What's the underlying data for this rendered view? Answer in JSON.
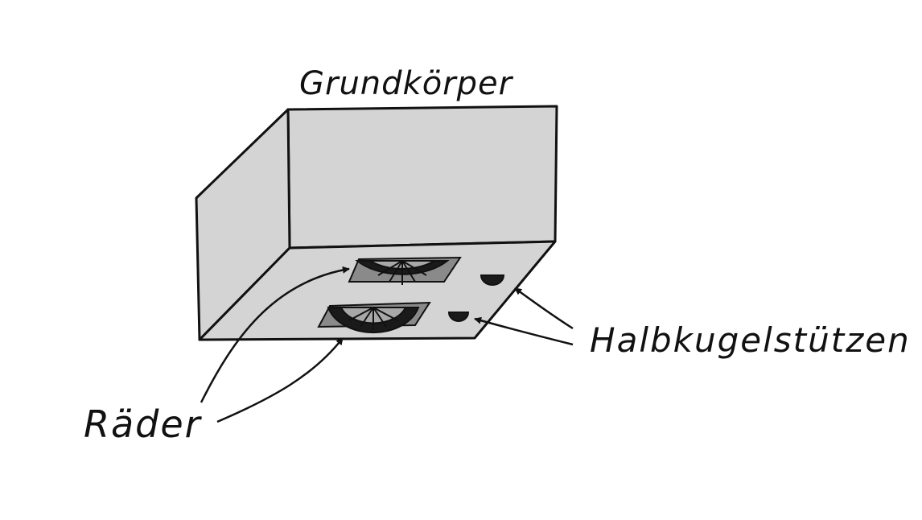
{
  "labels": {
    "body": "Grundkörper",
    "wheels": "Räder",
    "supports": "Halbkugelstützen"
  },
  "colors": {
    "body_fill": "#d4d4d4",
    "outline": "#111111",
    "tire": "#1a1a1a",
    "wheel_slot": "#8a8a8a",
    "spoke_fill": "#a8a8a8",
    "background": "#ffffff"
  }
}
